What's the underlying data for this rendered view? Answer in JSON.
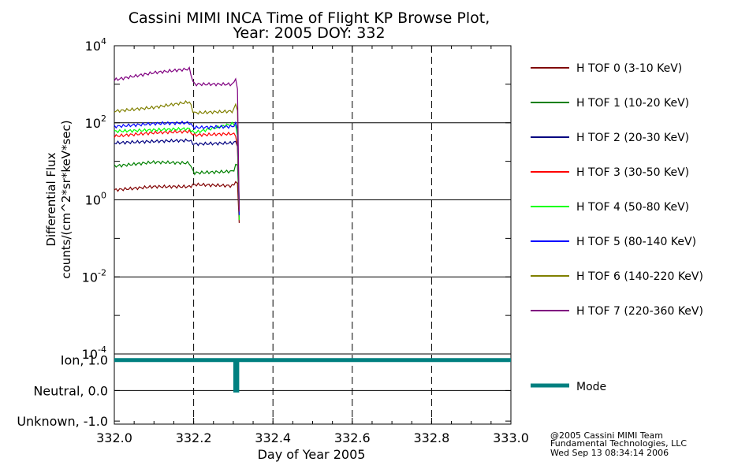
{
  "title": {
    "line1": "Cassini MIMI INCA Time of Flight KP Browse Plot,",
    "line2": "Year: 2005 DOY: 332"
  },
  "credits": {
    "line1": "@2005 Cassini MIMI Team",
    "line2": "Fundamental Technologies, LLC",
    "line3": "Wed Sep 13 08:34:14 2006"
  },
  "colors": {
    "grid": "#000000",
    "mode": "#008080"
  },
  "chart_data": [
    {
      "type": "line",
      "title": "",
      "xlabel": "Day of Year 2005",
      "ylabel_line1": "Differential Flux",
      "ylabel_line2": "counts/(cm^2*sr*keV*sec)",
      "y_scale": "log",
      "xlim": [
        332.0,
        333.0
      ],
      "ylim": [
        0.0001,
        10000
      ],
      "x_ticks": [
        "332.0",
        "332.2",
        "332.4",
        "332.6",
        "332.8",
        "333.0"
      ],
      "y_ticks": [
        {
          "base": "10",
          "exp": "4",
          "value": 10000
        },
        {
          "base": "10",
          "exp": "2",
          "value": 100
        },
        {
          "base": "10",
          "exp": "0",
          "value": 1
        },
        {
          "base": "10",
          "exp": "-2",
          "value": 0.01
        },
        {
          "base": "10",
          "exp": "-4",
          "value": 0.0001
        }
      ],
      "grid": "solid horizontal at decades, dashed vertical at major x ticks",
      "legend_position": "right",
      "data_end_x": 332.315,
      "series": [
        {
          "name": "H TOF 0 (3-10 KeV)",
          "color": "#800000",
          "x": [
            332.0,
            332.1,
            332.19,
            332.2,
            332.3,
            332.31,
            332.315
          ],
          "y": [
            1.8,
            2.2,
            2.2,
            2.5,
            2.3,
            3.5,
            0.25
          ]
        },
        {
          "name": "H TOF 1 (10-20 KeV)",
          "color": "#008000",
          "x": [
            332.0,
            332.1,
            332.19,
            332.2,
            332.3,
            332.31,
            332.315
          ],
          "y": [
            7.5,
            9.5,
            9.0,
            5.0,
            5.5,
            11,
            0.5
          ]
        },
        {
          "name": "H TOF 2 (20-30 KeV)",
          "color": "#000080",
          "x": [
            332.0,
            332.1,
            332.19,
            332.2,
            332.3,
            332.31,
            332.315
          ],
          "y": [
            30,
            33,
            35,
            28,
            30,
            35,
            0.8
          ]
        },
        {
          "name": "H TOF 3 (30-50 KeV)",
          "color": "#ff0000",
          "x": [
            332.0,
            332.1,
            332.19,
            332.2,
            332.3,
            332.31,
            332.315
          ],
          "y": [
            45,
            55,
            60,
            48,
            52,
            40,
            0.3
          ]
        },
        {
          "name": "H TOF 4 (50-80 KeV)",
          "color": "#00ff00",
          "x": [
            332.0,
            332.1,
            332.19,
            332.2,
            332.3,
            332.31,
            332.315
          ],
          "y": [
            60,
            65,
            70,
            55,
            95,
            80,
            0.3
          ]
        },
        {
          "name": "H TOF 5 (80-140 KeV)",
          "color": "#0000ff",
          "x": [
            332.0,
            332.1,
            332.19,
            332.2,
            332.3,
            332.31,
            332.315
          ],
          "y": [
            80,
            95,
            100,
            75,
            80,
            120,
            0.4
          ]
        },
        {
          "name": "H TOF 6 (140-220 KeV)",
          "color": "#808000",
          "x": [
            332.0,
            332.1,
            332.19,
            332.2,
            332.3,
            332.31,
            332.315
          ],
          "y": [
            200,
            250,
            350,
            180,
            200,
            400,
            0.5
          ]
        },
        {
          "name": "H TOF 7 (220-360 KeV)",
          "color": "#800080",
          "x": [
            332.0,
            332.1,
            332.19,
            332.2,
            332.3,
            332.31,
            332.315
          ],
          "y": [
            1300,
            2000,
            2500,
            1000,
            1000,
            1700,
            0.5
          ]
        }
      ]
    },
    {
      "type": "line",
      "title": "",
      "xlim": [
        332.0,
        333.0
      ],
      "ylim": [
        -1.0,
        1.0
      ],
      "y_ticks": [
        "Ion, 1.0",
        "Neutral, 0.0",
        "Unknown, -1.0"
      ],
      "y_tick_values": [
        1.0,
        0.0,
        -1.0
      ],
      "grid": "solid horizontal at 0.0, dashed vertical at major x ticks",
      "series": [
        {
          "name": "Mode",
          "color": "#008080",
          "x": [
            332.0,
            332.305,
            332.305,
            332.31,
            332.31,
            333.0
          ],
          "y": [
            1.0,
            1.0,
            0.0,
            0.0,
            1.0,
            1.0
          ]
        }
      ]
    }
  ]
}
